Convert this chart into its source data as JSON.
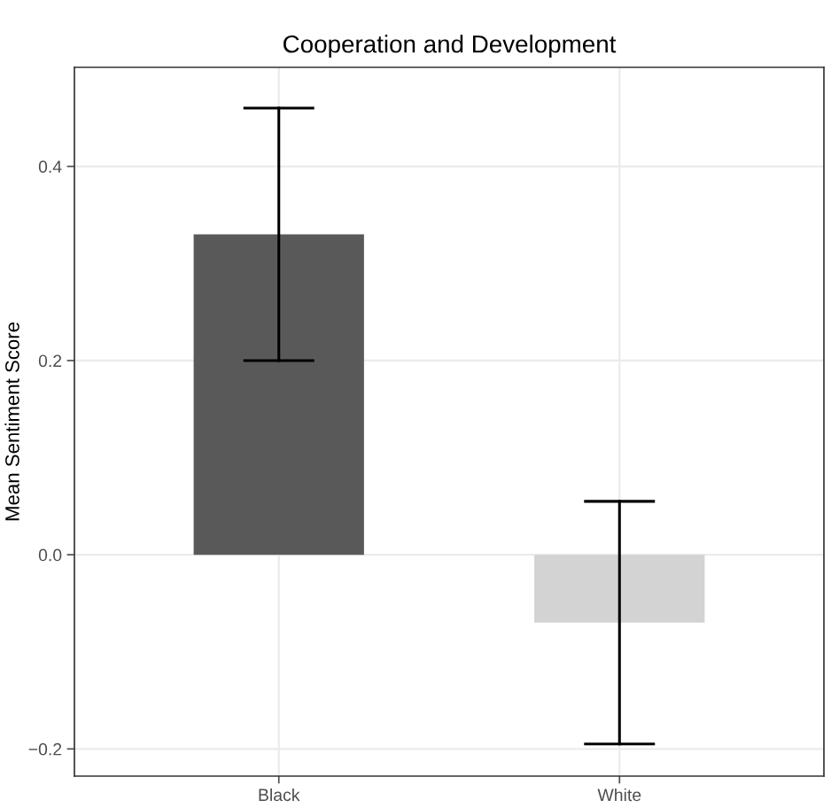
{
  "chart_data": {
    "type": "bar",
    "title": "Cooperation and Development",
    "ylabel": "Mean Sentiment Score",
    "categories": [
      "Black",
      "White"
    ],
    "values": [
      0.33,
      -0.07
    ],
    "colors": [
      "#595959",
      "#d3d3d3"
    ],
    "errors": [
      [
        0.2,
        0.46
      ],
      [
        -0.195,
        0.055
      ]
    ],
    "ylim": [
      -0.228,
      0.502
    ],
    "yticks": [
      {
        "value": -0.2,
        "label": "−0.2"
      },
      {
        "value": 0.0,
        "label": "0.0"
      },
      {
        "value": 0.2,
        "label": "0.2"
      },
      {
        "value": 0.4,
        "label": "0.4"
      }
    ],
    "grid": true,
    "legend": false
  }
}
